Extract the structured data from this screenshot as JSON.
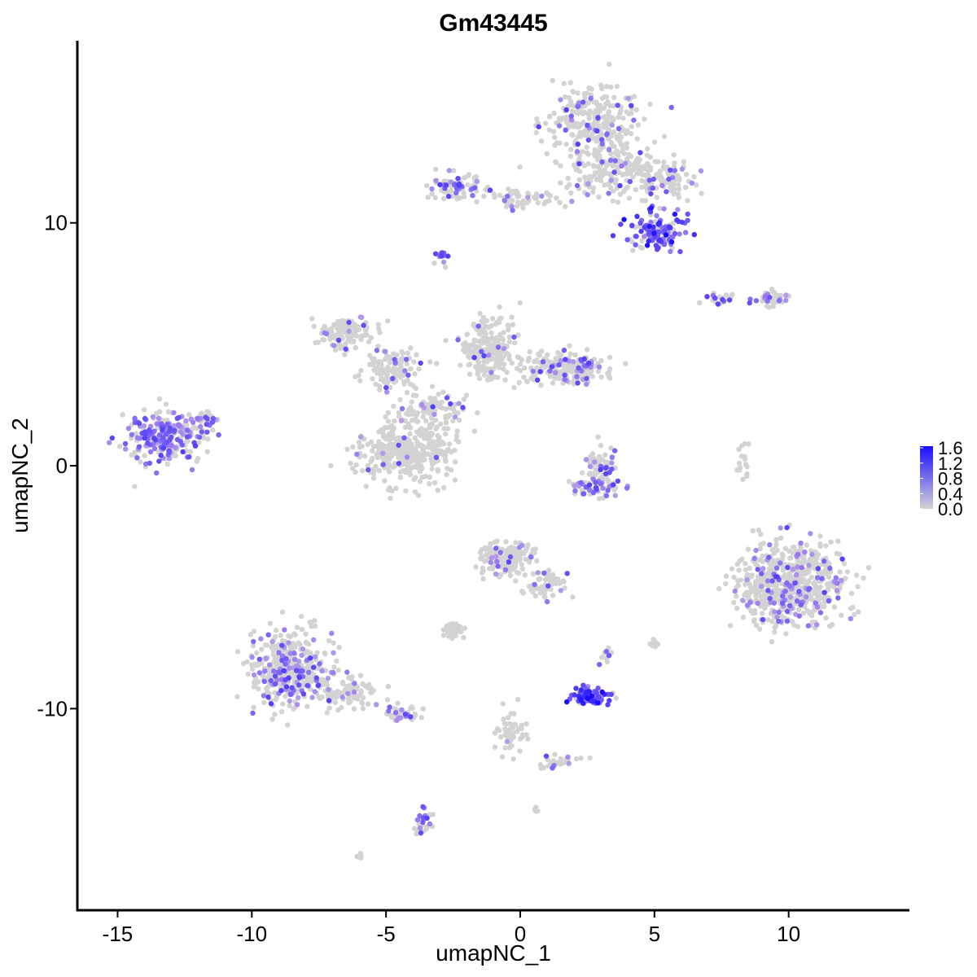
{
  "chart_data": {
    "type": "scatter",
    "title": "Gm43445",
    "xlabel": "umapNC_1",
    "ylabel": "umapNC_2",
    "xlim": [
      -16.5,
      14.5
    ],
    "ylim": [
      -18.3,
      17.5
    ],
    "xticks": [
      -15,
      -10,
      -5,
      0,
      5,
      10
    ],
    "yticks": [
      -10,
      0,
      10
    ],
    "xtick_labels": [
      "-15",
      "-10",
      "-5",
      "0",
      "5",
      "10"
    ],
    "ytick_labels": [
      "-10",
      "0",
      "10"
    ],
    "grid": false,
    "point_color_low": "#d3d3d3",
    "point_color_high": "#1a0dff",
    "legend": {
      "type": "colorbar",
      "position": "right",
      "labels": [
        "1.6",
        "1.2",
        "0.8",
        "0.4",
        "0.0"
      ],
      "values": [
        1.6,
        1.2,
        0.8,
        0.4,
        0.0
      ]
    },
    "expression_range": [
      0.0,
      1.6
    ],
    "clusters": [
      {
        "cx": 2.8,
        "cy": 14.2,
        "sx": 1.6,
        "sy": 1.3,
        "n": 260,
        "frac": 0.12
      },
      {
        "cx": 3.6,
        "cy": 12.2,
        "sx": 2.0,
        "sy": 1.0,
        "n": 220,
        "frac": 0.08
      },
      {
        "cx": 5.5,
        "cy": 11.8,
        "sx": 0.9,
        "sy": 0.6,
        "n": 60,
        "frac": 0.1
      },
      {
        "cx": 5.0,
        "cy": 9.7,
        "sx": 1.0,
        "sy": 0.7,
        "n": 120,
        "frac": 0.7
      },
      {
        "cx": -2.5,
        "cy": 11.5,
        "sx": 0.9,
        "sy": 0.5,
        "n": 80,
        "frac": 0.35
      },
      {
        "cx": 0.2,
        "cy": 11.0,
        "sx": 1.5,
        "sy": 0.4,
        "n": 60,
        "frac": 0.08
      },
      {
        "cx": -2.9,
        "cy": 8.6,
        "sx": 0.2,
        "sy": 0.3,
        "n": 14,
        "frac": 0.6
      },
      {
        "cx": 9.3,
        "cy": 6.9,
        "sx": 0.6,
        "sy": 0.3,
        "n": 40,
        "frac": 0.45
      },
      {
        "cx": 7.5,
        "cy": 6.9,
        "sx": 0.6,
        "sy": 0.2,
        "n": 20,
        "frac": 0.3
      },
      {
        "cx": -13.2,
        "cy": 1.2,
        "sx": 1.3,
        "sy": 0.9,
        "n": 260,
        "frac": 0.55
      },
      {
        "cx": -11.8,
        "cy": 1.9,
        "sx": 0.5,
        "sy": 0.4,
        "n": 30,
        "frac": 0.3
      },
      {
        "cx": -6.5,
        "cy": 5.5,
        "sx": 0.9,
        "sy": 0.6,
        "n": 120,
        "frac": 0.1
      },
      {
        "cx": -4.8,
        "cy": 4.0,
        "sx": 0.9,
        "sy": 0.8,
        "n": 120,
        "frac": 0.12
      },
      {
        "cx": -4.2,
        "cy": 0.6,
        "sx": 1.6,
        "sy": 1.2,
        "n": 380,
        "frac": 0.03
      },
      {
        "cx": -1.2,
        "cy": 4.8,
        "sx": 0.9,
        "sy": 1.1,
        "n": 220,
        "frac": 0.06
      },
      {
        "cx": 1.5,
        "cy": 4.1,
        "sx": 1.6,
        "sy": 0.6,
        "n": 180,
        "frac": 0.1
      },
      {
        "cx": 2.3,
        "cy": 4.0,
        "sx": 0.5,
        "sy": 0.5,
        "n": 60,
        "frac": 0.35
      },
      {
        "cx": -3.2,
        "cy": 2.3,
        "sx": 1.0,
        "sy": 0.8,
        "n": 90,
        "frac": 0.08
      },
      {
        "cx": 3.0,
        "cy": -0.2,
        "sx": 0.6,
        "sy": 0.9,
        "n": 80,
        "frac": 0.25
      },
      {
        "cx": 2.8,
        "cy": -0.9,
        "sx": 0.9,
        "sy": 0.3,
        "n": 50,
        "frac": 0.4
      },
      {
        "cx": 10.2,
        "cy": -4.8,
        "sx": 1.7,
        "sy": 1.6,
        "n": 560,
        "frac": 0.14
      },
      {
        "cx": 8.8,
        "cy": -5.2,
        "sx": 0.7,
        "sy": 1.2,
        "n": 90,
        "frac": 0.15
      },
      {
        "cx": 8.3,
        "cy": 0.3,
        "sx": 0.2,
        "sy": 0.8,
        "n": 16,
        "frac": 0.2
      },
      {
        "cx": -8.6,
        "cy": -8.4,
        "sx": 1.3,
        "sy": 1.4,
        "n": 420,
        "frac": 0.25
      },
      {
        "cx": -6.5,
        "cy": -9.4,
        "sx": 1.0,
        "sy": 0.6,
        "n": 90,
        "frac": 0.15
      },
      {
        "cx": -4.4,
        "cy": -10.2,
        "sx": 0.6,
        "sy": 0.3,
        "n": 40,
        "frac": 0.25
      },
      {
        "cx": -3.6,
        "cy": -14.7,
        "sx": 0.25,
        "sy": 0.5,
        "n": 30,
        "frac": 0.4
      },
      {
        "cx": -0.5,
        "cy": -3.8,
        "sx": 0.9,
        "sy": 0.7,
        "n": 160,
        "frac": 0.08
      },
      {
        "cx": 1.0,
        "cy": -4.9,
        "sx": 0.7,
        "sy": 0.6,
        "n": 60,
        "frac": 0.1
      },
      {
        "cx": -2.5,
        "cy": -6.8,
        "sx": 0.4,
        "sy": 0.3,
        "n": 40,
        "frac": 0.0
      },
      {
        "cx": 2.6,
        "cy": -9.5,
        "sx": 0.6,
        "sy": 0.3,
        "n": 90,
        "frac": 0.75
      },
      {
        "cx": -0.4,
        "cy": -11.0,
        "sx": 0.5,
        "sy": 0.8,
        "n": 50,
        "frac": 0.05
      },
      {
        "cx": 1.4,
        "cy": -12.2,
        "sx": 0.9,
        "sy": 0.3,
        "n": 30,
        "frac": 0.2
      },
      {
        "cx": 5.0,
        "cy": -7.3,
        "sx": 0.2,
        "sy": 0.2,
        "n": 10,
        "frac": 0.2
      },
      {
        "cx": 3.2,
        "cy": -7.9,
        "sx": 0.2,
        "sy": 0.4,
        "n": 10,
        "frac": 0.2
      },
      {
        "cx": -6.0,
        "cy": -16.1,
        "sx": 0.15,
        "sy": 0.1,
        "n": 8,
        "frac": 0.0
      },
      {
        "cx": 0.6,
        "cy": -14.1,
        "sx": 0.1,
        "sy": 0.1,
        "n": 4,
        "frac": 0.6
      }
    ]
  }
}
